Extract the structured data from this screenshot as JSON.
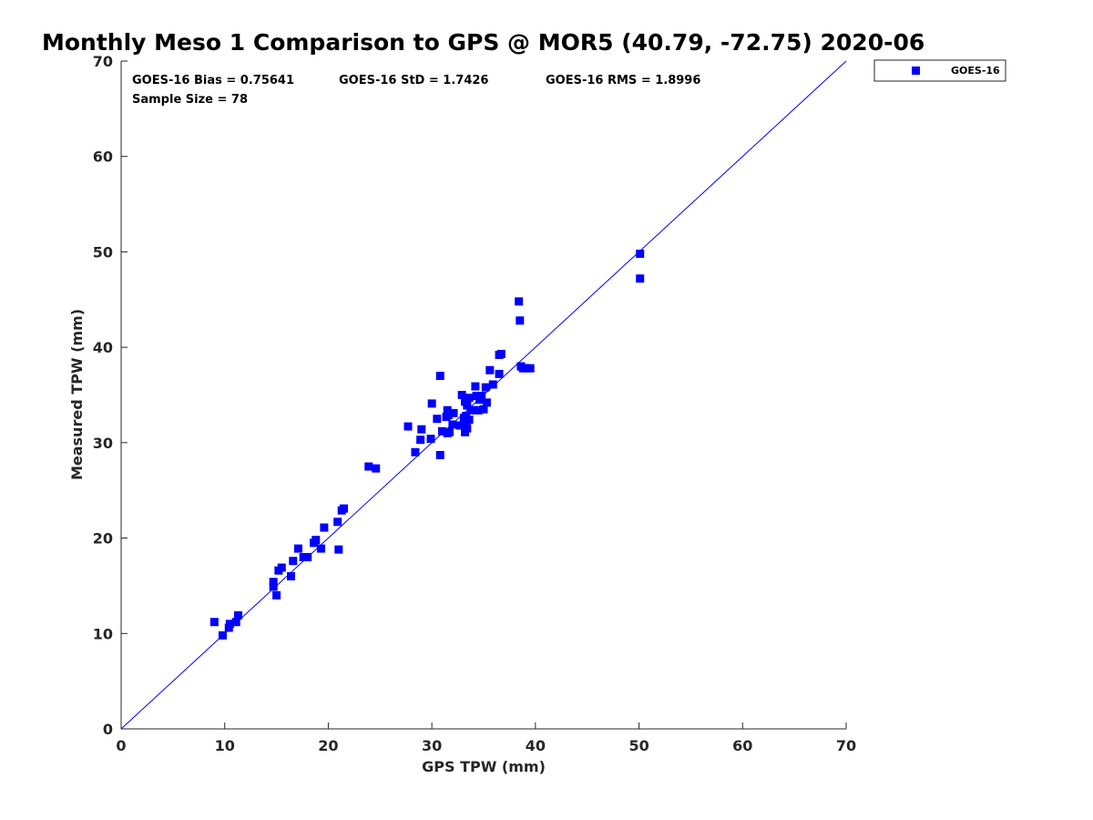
{
  "chart_data": {
    "type": "scatter",
    "title": "Monthly Meso 1 Comparison to GPS @ MOR5 (40.79, -72.75) 2020-06",
    "xlabel": "GPS TPW (mm)",
    "ylabel": "Measured TPW (mm)",
    "xlim": [
      0,
      70
    ],
    "ylim": [
      0,
      70
    ],
    "xticks": [
      0,
      10,
      20,
      30,
      40,
      50,
      60,
      70
    ],
    "yticks": [
      0,
      10,
      20,
      30,
      40,
      50,
      60,
      70
    ],
    "grid": false,
    "legend_position": "top-right-outside",
    "reference_line": {
      "from": [
        0,
        0
      ],
      "to": [
        70,
        70
      ],
      "color": "#0000ff"
    },
    "annotations": {
      "bias": "GOES-16 Bias = 0.75641",
      "std": "GOES-16 StD = 1.7426",
      "rms": "GOES-16 RMS = 1.8996",
      "sample_size": "Sample Size = 78"
    },
    "series": [
      {
        "name": "GOES-16",
        "color": "#0000ff",
        "marker": "square",
        "x": [
          9.0,
          9.8,
          10.4,
          10.5,
          11.1,
          11.3,
          14.7,
          14.7,
          15.0,
          15.2,
          15.5,
          16.4,
          16.6,
          17.1,
          17.6,
          18.0,
          18.6,
          18.8,
          19.3,
          19.6,
          20.9,
          21.0,
          21.3,
          21.5,
          23.9,
          24.6,
          27.7,
          28.4,
          28.9,
          29.0,
          29.9,
          30.0,
          30.5,
          30.8,
          30.8,
          31.0,
          31.4,
          31.5,
          31.5,
          31.6,
          31.7,
          32.0,
          32.1,
          32.7,
          32.9,
          33.1,
          33.1,
          33.2,
          33.2,
          33.3,
          33.3,
          33.4,
          33.4,
          33.6,
          33.6,
          33.8,
          34.2,
          34.2,
          34.3,
          34.5,
          34.6,
          34.8,
          35.0,
          35.2,
          35.3,
          35.6,
          35.9,
          36.5,
          36.5,
          36.7,
          38.4,
          38.5,
          38.6,
          38.8,
          39.1,
          39.5,
          50.1,
          50.1
        ],
        "y": [
          11.2,
          9.8,
          10.6,
          11.0,
          11.2,
          11.9,
          14.9,
          15.4,
          14.0,
          16.6,
          16.9,
          16.0,
          17.6,
          18.9,
          18.0,
          18.0,
          19.5,
          19.8,
          18.9,
          21.1,
          21.7,
          18.8,
          22.9,
          23.1,
          27.5,
          27.3,
          31.7,
          29.0,
          30.3,
          31.4,
          30.4,
          34.1,
          32.5,
          28.7,
          37.0,
          31.2,
          32.7,
          31.0,
          33.4,
          32.9,
          31.1,
          31.9,
          33.1,
          31.8,
          35.0,
          32.0,
          32.6,
          31.1,
          34.3,
          32.2,
          32.8,
          31.5,
          33.9,
          32.4,
          34.7,
          33.4,
          33.4,
          35.9,
          34.9,
          33.4,
          34.5,
          34.9,
          33.5,
          35.8,
          34.2,
          37.6,
          36.1,
          37.2,
          39.2,
          39.3,
          44.8,
          42.8,
          38.0,
          37.8,
          37.8,
          37.8,
          49.8,
          47.2
        ]
      }
    ]
  }
}
